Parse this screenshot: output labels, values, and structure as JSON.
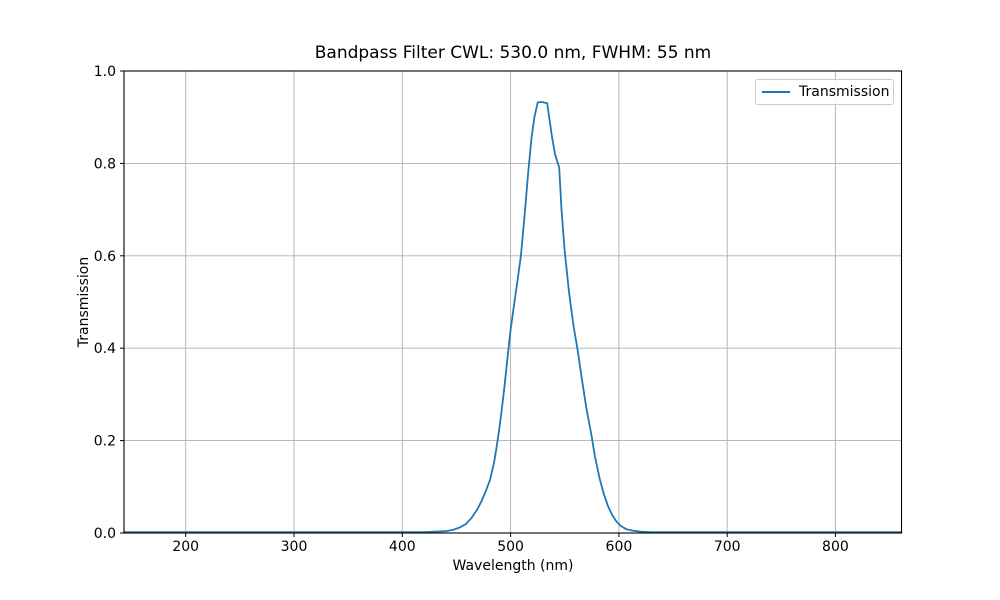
{
  "figure": {
    "background_color": "#ffffff"
  },
  "chart_data": {
    "type": "line",
    "title": "Bandpass Filter CWL: 530.0 nm, FWHM: 55 nm",
    "xlabel": "Wavelength (nm)",
    "ylabel": "Transmission",
    "xlim": [
      143,
      861
    ],
    "ylim": [
      0.0,
      1.0
    ],
    "xticks": [
      200,
      300,
      400,
      500,
      600,
      700,
      800
    ],
    "xtick_labels": [
      "200",
      "300",
      "400",
      "500",
      "600",
      "700",
      "800"
    ],
    "yticks": [
      0.0,
      0.2,
      0.4,
      0.6,
      0.8,
      1.0
    ],
    "ytick_labels": [
      "0.0",
      "0.2",
      "0.4",
      "0.6",
      "0.8",
      "1.0"
    ],
    "grid": true,
    "grid_color": "#b0b0b0",
    "spine_color": "#000000",
    "legend": {
      "position": "upper right",
      "border_color": "#cccccc",
      "entries": [
        {
          "label": "Transmission",
          "color": "#1f77b4"
        }
      ]
    },
    "series": [
      {
        "name": "Transmission",
        "color": "#1f77b4",
        "x": [
          143,
          170,
          200,
          230,
          260,
          290,
          320,
          350,
          380,
          405,
          420,
          430,
          440,
          447,
          453,
          459,
          464,
          469,
          473,
          477,
          481,
          485,
          488,
          491,
          494,
          497,
          500,
          503,
          506,
          509.5,
          513,
          516.3,
          519.4,
          522,
          525,
          529,
          533.8,
          537.9,
          541,
          544.9,
          547,
          550,
          554,
          558,
          562,
          566,
          570,
          574.8,
          578,
          582,
          586,
          590,
          594,
          598,
          602,
          607,
          613,
          620,
          630,
          645,
          670,
          700,
          740,
          780,
          820,
          861
        ],
        "y": [
          0.002,
          0.002,
          0.002,
          0.002,
          0.002,
          0.002,
          0.002,
          0.002,
          0.002,
          0.002,
          0.002,
          0.003,
          0.004,
          0.007,
          0.012,
          0.02,
          0.033,
          0.05,
          0.068,
          0.09,
          0.115,
          0.155,
          0.2,
          0.25,
          0.31,
          0.375,
          0.44,
          0.49,
          0.54,
          0.6,
          0.69,
          0.78,
          0.857,
          0.9,
          0.932,
          0.933,
          0.93,
          0.863,
          0.82,
          0.791,
          0.7,
          0.61,
          0.52,
          0.45,
          0.395,
          0.33,
          0.27,
          0.21,
          0.165,
          0.12,
          0.085,
          0.058,
          0.038,
          0.024,
          0.015,
          0.008,
          0.005,
          0.003,
          0.002,
          0.002,
          0.002,
          0.002,
          0.002,
          0.002,
          0.002,
          0.002
        ]
      }
    ]
  }
}
